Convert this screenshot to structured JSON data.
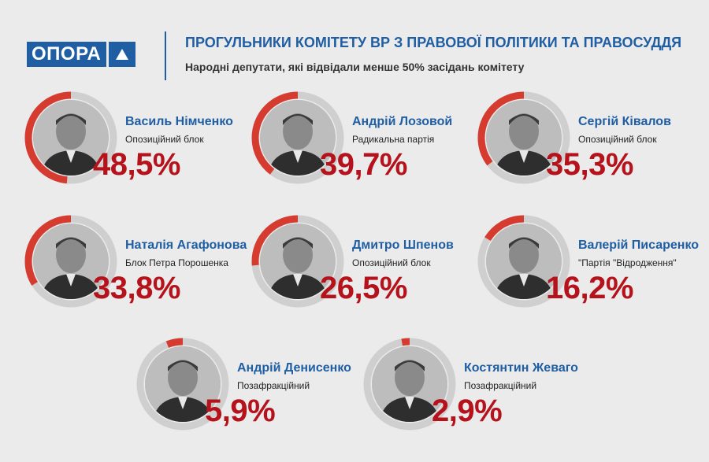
{
  "logo": {
    "text": "ОПОРА"
  },
  "header": {
    "title": "ПРОГУЛЬНИКИ КОМІТЕТУ ВР З ПРАВОВОЇ ПОЛІТИКИ ТА ПРАВОСУДДЯ",
    "subtitle": "Народні депутати, які відвідали менше 50% засідань комітету"
  },
  "colors": {
    "accent": "#1f5ea3",
    "ring_fill": "#d63b2f",
    "ring_track": "#cfcfcf",
    "percent": "#b5121b"
  },
  "chart_data": {
    "type": "pie",
    "unit": "%",
    "items": [
      {
        "name": "Василь Німченко",
        "party": "Опозиційний блок",
        "value": 48.5,
        "label": "48,5%"
      },
      {
        "name": "Андрій Лозовой",
        "party": "Радикальна партія",
        "value": 39.7,
        "label": "39,7%"
      },
      {
        "name": "Сергій Ківалов",
        "party": "Опозиційний блок",
        "value": 35.3,
        "label": "35,3%"
      },
      {
        "name": "Наталія Агафонова",
        "party": "Блок Петра Порошенка",
        "value": 33.8,
        "label": "33,8%"
      },
      {
        "name": "Дмитро Шпенов",
        "party": "Опозиційний блок",
        "value": 26.5,
        "label": "26,5%"
      },
      {
        "name": "Валерій Писаренко",
        "party": "\"Партія \"Відродження\"",
        "value": 16.2,
        "label": "16,2%"
      },
      {
        "name": "Андрій Денисенко",
        "party": "Позафракційний",
        "value": 5.9,
        "label": "5,9%"
      },
      {
        "name": "Костянтин Жеваго",
        "party": "Позафракційний",
        "value": 2.9,
        "label": "2,9%"
      }
    ]
  }
}
